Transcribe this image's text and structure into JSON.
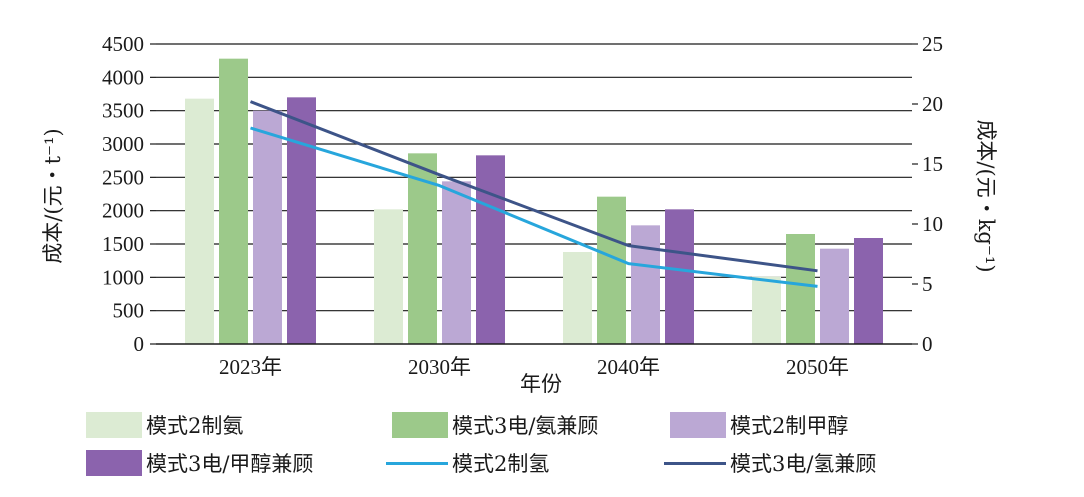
{
  "chart_data": {
    "type": "bar",
    "categories": [
      "2023年",
      "2030年",
      "2040年",
      "2050年"
    ],
    "xlabel": "年份",
    "ylabel_left": "成本/(元・t⁻¹)",
    "ylabel_right": "成本/(元・kg⁻¹)",
    "ylim_left": [
      0,
      4500
    ],
    "ylim_right": [
      0,
      25
    ],
    "yticks_left": [
      "0",
      "500",
      "1000",
      "1500",
      "2000",
      "2500",
      "3000",
      "3500",
      "4000",
      "4500"
    ],
    "yticks_right": [
      "0",
      "5",
      "10",
      "15",
      "20",
      "25"
    ],
    "bar_series": [
      {
        "name": "模式2制氨",
        "color": "#dcebd3",
        "values": [
          3680,
          2020,
          1380,
          1010
        ]
      },
      {
        "name": "模式3电/氨兼顾",
        "color": "#9cc98a",
        "values": [
          4280,
          2860,
          2210,
          1650
        ]
      },
      {
        "name": "模式2制甲醇",
        "color": "#bba8d4",
        "values": [
          3500,
          2440,
          1780,
          1430
        ]
      },
      {
        "name": "模式3电/甲醇兼顾",
        "color": "#8b63ad",
        "values": [
          3700,
          2830,
          2020,
          1590
        ]
      }
    ],
    "line_series": [
      {
        "name": "模式2制氢",
        "color": "#27a6dc",
        "axis": "right",
        "values": [
          18.0,
          13.2,
          6.7,
          4.8
        ]
      },
      {
        "name": "模式3电/氢兼顾",
        "color": "#3d5488",
        "axis": "right",
        "values": [
          20.2,
          14.1,
          8.2,
          6.1
        ]
      }
    ],
    "legend": [
      "模式2制氨",
      "模式3电/氨兼顾",
      "模式2制甲醇",
      "模式3电/甲醇兼顾",
      "模式2制氢",
      "模式3电/氢兼顾"
    ],
    "grid": true
  }
}
